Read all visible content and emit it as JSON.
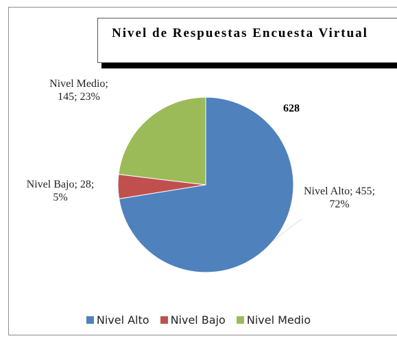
{
  "chart_data": {
    "type": "pie",
    "title": "Nivel de Respuestas Encuesta Virtual",
    "total": 628,
    "categories": [
      "Nivel Alto",
      "Nivel Bajo",
      "Nivel Medio"
    ],
    "values": [
      455,
      28,
      145
    ],
    "value_labels": [
      "Nivel Alto; 455; 72%",
      "Nivel Bajo; 28; 5%",
      "Nivel Medio; 145; 23%"
    ],
    "colors": [
      "#4f81bd",
      "#c0504d",
      "#9bbb59"
    ],
    "legend": "bottom"
  }
}
